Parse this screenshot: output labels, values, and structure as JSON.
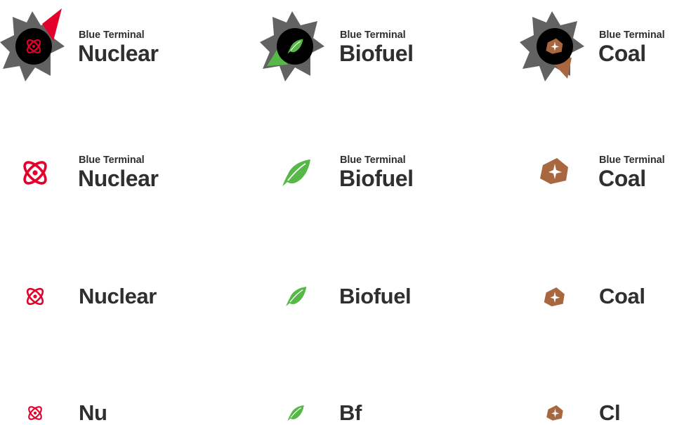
{
  "colors": {
    "nuclear": "#e4002b",
    "biofuel": "#56b947",
    "coal": "#a9673f",
    "text": "#2f2f2f",
    "star": "#5a5a5a"
  },
  "icons": {
    "nuclear": "atom-icon",
    "biofuel": "leaf-icon",
    "coal": "coal-icon"
  },
  "rows": {
    "badge": {
      "nuclear": {
        "brand": "Blue Terminal",
        "product": "Nuclear"
      },
      "biofuel": {
        "brand": "Blue Terminal",
        "product": "Biofuel"
      },
      "coal": {
        "brand": "Blue Terminal",
        "product": "Coal"
      }
    },
    "full": {
      "nuclear": {
        "brand": "Blue Terminal",
        "product": "Nuclear"
      },
      "biofuel": {
        "brand": "Blue Terminal",
        "product": "Biofuel"
      },
      "coal": {
        "brand": "Blue Terminal",
        "product": "Coal"
      }
    },
    "name": {
      "nuclear": "Nuclear",
      "biofuel": "Biofuel",
      "coal": "Coal"
    },
    "abbr": {
      "nuclear": "Nu",
      "biofuel": "Bf",
      "coal": "Cl"
    }
  }
}
